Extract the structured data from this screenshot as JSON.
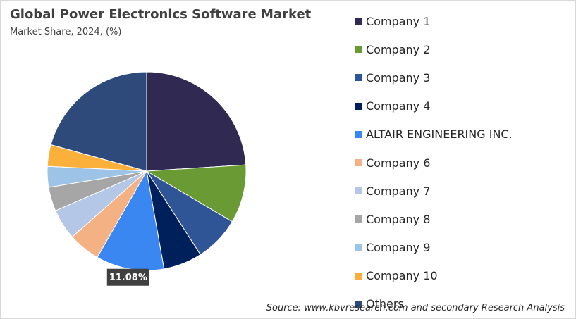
{
  "chart_data": {
    "type": "pie",
    "title": "Global Power Electronics Software Market",
    "subtitle": "Market Share, 2024, (%)",
    "categories": [
      "Company 1",
      "Company 2",
      "Company 3",
      "Company 4",
      "ALTAIR ENGINEERING INC.",
      "Company 6",
      "Company 7",
      "Company 8",
      "Company 9",
      "Company 10",
      "Others"
    ],
    "values": [
      24.0,
      9.5,
      7.4,
      6.3,
      11.08,
      5.2,
      5.0,
      3.9,
      3.4,
      3.5,
      20.72
    ],
    "colors": [
      "#302a52",
      "#6a9a33",
      "#2f5597",
      "#00205b",
      "#3a87f2",
      "#f4b183",
      "#b4c7e7",
      "#a6a6a6",
      "#9dc3e6",
      "#fbb03b",
      "#2e4a7a"
    ],
    "data_labels": [
      {
        "index": 4,
        "text": "11.08%"
      }
    ],
    "legend_position": "right"
  },
  "source": "Source: www.kbvresearch.com and secondary Research Analysis"
}
